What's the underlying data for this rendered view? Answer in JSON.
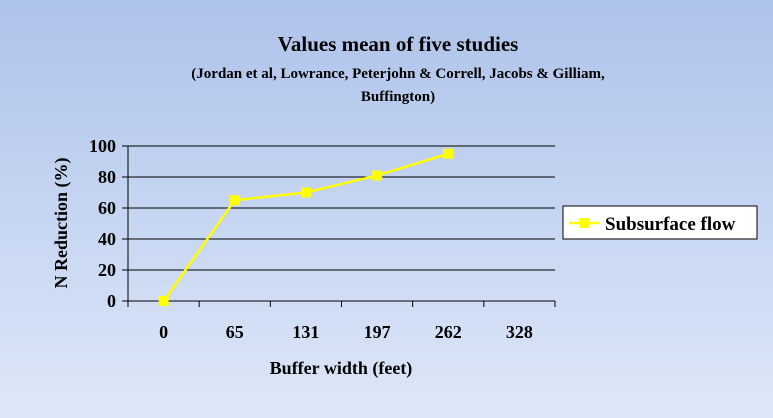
{
  "chart_data": {
    "type": "line",
    "title": "Values mean of five studies",
    "subtitle_lines": [
      "(Jordan et al, Lowrance, Peterjohn & Correll, Jacobs & Gilliam,",
      "Buffington)"
    ],
    "xlabel": "Buffer width (feet)",
    "ylabel": "N Reduction (%)",
    "categories": [
      "0",
      "65",
      "131",
      "197",
      "262",
      "328"
    ],
    "ylim": [
      0,
      100
    ],
    "yticks": [
      0,
      20,
      40,
      60,
      80,
      100
    ],
    "grid": true,
    "legend_position": "right",
    "series": [
      {
        "name": "Subsurface flow",
        "color": "#ffff00",
        "marker": "square",
        "values": [
          0,
          65,
          70,
          81,
          95,
          null
        ]
      }
    ]
  }
}
